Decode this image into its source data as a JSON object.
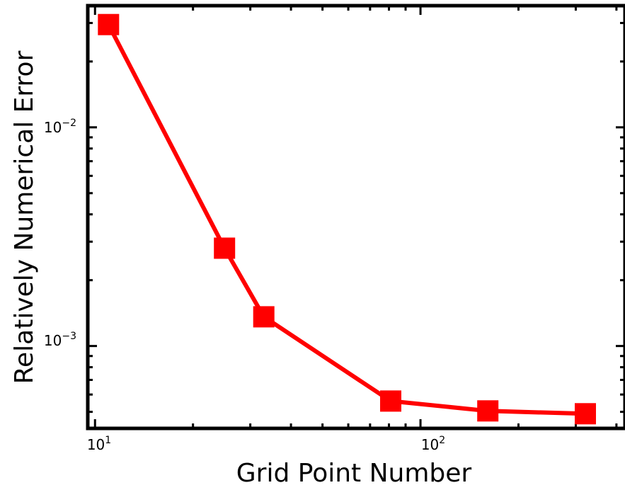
{
  "chart_data": {
    "type": "line",
    "title": "",
    "xlabel": "Grid Point Number",
    "ylabel": "Relatively Numerical Error",
    "xscale": "log",
    "yscale": "log",
    "xlim": [
      9.5,
      425
    ],
    "ylim": [
      0.00042,
      0.036
    ],
    "x_ticks": [
      {
        "base": "10",
        "exp": "1"
      },
      {
        "base": "10",
        "exp": "2"
      }
    ],
    "y_ticks": [
      {
        "base": "10",
        "exp": "−3"
      },
      {
        "base": "10",
        "exp": "−2"
      }
    ],
    "grid": false,
    "legend": "none",
    "series": [
      {
        "color": "#ff0000",
        "marker": "square",
        "x": [
          11,
          25,
          33,
          81,
          161,
          321
        ],
        "y": [
          0.0295,
          0.0028,
          0.00136,
          0.00056,
          0.000505,
          0.00049
        ]
      }
    ]
  }
}
